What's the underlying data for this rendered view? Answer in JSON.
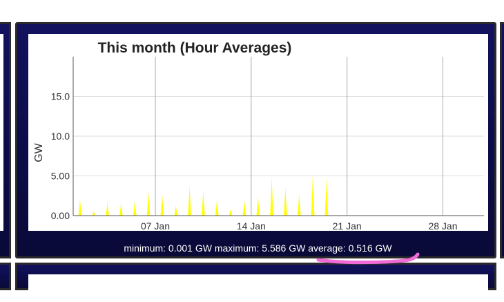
{
  "stats": {
    "minimum_label": "minimum:",
    "minimum_value": "0.001 GW",
    "maximum_label": "maximum:",
    "maximum_value": "5.586 GW",
    "average_label": "average:",
    "average_value": "0.516 GW"
  },
  "colors": {
    "panel": "#10105a",
    "series": "#ffff00",
    "highlight": "#f06ad8"
  },
  "chart_data": {
    "type": "area",
    "title": "This month (Hour Averages)",
    "ylabel": "GW",
    "xlabel": "",
    "ylim": [
      0,
      20
    ],
    "xlim": [
      "2024-01-01",
      "2024-01-31"
    ],
    "y_ticks": [
      "0.00",
      "5.00",
      "10.0",
      "15.0"
    ],
    "y_tick_values": [
      0,
      5,
      10,
      15
    ],
    "x_ticks": [
      "07 Jan",
      "14 Jan",
      "21 Jan",
      "28 Jan"
    ],
    "x_tick_dates": [
      "2024-01-07",
      "2024-01-14",
      "2024-01-21",
      "2024-01-28"
    ],
    "grid": true,
    "series": [
      {
        "color": "#ffff00",
        "peaks": [
          {
            "date": "2024-01-01 12:00",
            "value": 2.1
          },
          {
            "date": "2024-01-02 12:00",
            "value": 0.6
          },
          {
            "date": "2024-01-03 12:00",
            "value": 1.7
          },
          {
            "date": "2024-01-04 12:00",
            "value": 1.7
          },
          {
            "date": "2024-01-05 12:00",
            "value": 1.9
          },
          {
            "date": "2024-01-06 12:00",
            "value": 3.1
          },
          {
            "date": "2024-01-07 12:00",
            "value": 2.8
          },
          {
            "date": "2024-01-08 12:00",
            "value": 1.3
          },
          {
            "date": "2024-01-09 12:00",
            "value": 3.9
          },
          {
            "date": "2024-01-10 12:00",
            "value": 3.3
          },
          {
            "date": "2024-01-11 12:00",
            "value": 2.1
          },
          {
            "date": "2024-01-12 12:00",
            "value": 0.8
          },
          {
            "date": "2024-01-13 12:00",
            "value": 2.0
          },
          {
            "date": "2024-01-14 12:00",
            "value": 2.5
          },
          {
            "date": "2024-01-15 12:00",
            "value": 5.0
          },
          {
            "date": "2024-01-16 12:00",
            "value": 3.7
          },
          {
            "date": "2024-01-17 12:00",
            "value": 2.8
          },
          {
            "date": "2024-01-18 12:00",
            "value": 5.4
          },
          {
            "date": "2024-01-19 12:00",
            "value": 4.8
          }
        ]
      }
    ]
  }
}
